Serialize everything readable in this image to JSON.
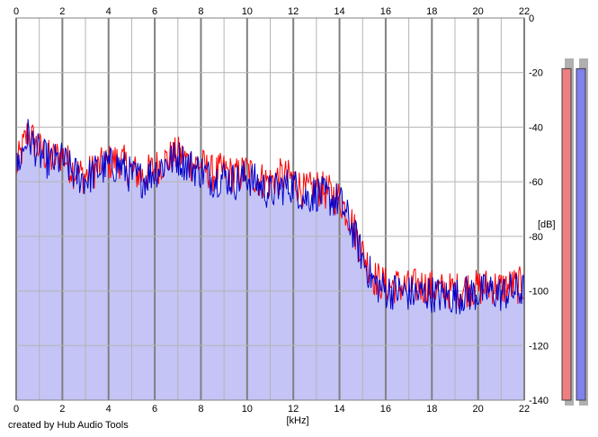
{
  "credit": "created by Hub Audio Tools",
  "chart_data": {
    "type": "area",
    "xlabel": "[kHz]",
    "ylabel": "[dB]",
    "xlim": [
      0,
      22
    ],
    "ylim": [
      -140,
      0
    ],
    "x_ticks": [
      "0",
      "2",
      "4",
      "6",
      "8",
      "10",
      "12",
      "14",
      "16",
      "18",
      "20",
      "22"
    ],
    "y_ticks": [
      "0",
      "-20",
      "-40",
      "-60",
      "-80",
      "-100",
      "-120",
      "-140"
    ],
    "grid": true,
    "colors": {
      "fill": "#c4c4f6",
      "grid": "#b4b4b4",
      "major_grid": "#808080",
      "red_series": "#ff0000",
      "blue_series": "#0000cc",
      "left_meter": "#ee7f80",
      "right_meter": "#8080ee"
    },
    "x": [
      0,
      0.5,
      1,
      1.5,
      2,
      2.5,
      3,
      3.5,
      4,
      4.5,
      5,
      5.5,
      6,
      6.5,
      7,
      7.5,
      8,
      8.5,
      9,
      9.5,
      10,
      10.5,
      11,
      11.5,
      12,
      12.5,
      13,
      13.5,
      14,
      14.5,
      15,
      15.5,
      16,
      16.5,
      17,
      17.5,
      18,
      18.5,
      19,
      19.5,
      20,
      20.5,
      21,
      21.5,
      22
    ],
    "series": [
      {
        "values": [
          -55,
          -42,
          -48,
          -52,
          -50,
          -56,
          -58,
          -55,
          -53,
          -52,
          -56,
          -58,
          -55,
          -52,
          -50,
          -53,
          -54,
          -57,
          -56,
          -58,
          -56,
          -59,
          -60,
          -58,
          -59,
          -64,
          -62,
          -64,
          -66,
          -74,
          -86,
          -95,
          -98,
          -98,
          -99,
          -98,
          -99,
          -100,
          -100,
          -99,
          -99,
          -98,
          -99,
          -98,
          -98
        ]
      },
      {
        "values": [
          -56,
          -43,
          -50,
          -53,
          -52,
          -57,
          -59,
          -56,
          -54,
          -54,
          -58,
          -59,
          -56,
          -53,
          -51,
          -54,
          -56,
          -59,
          -58,
          -60,
          -58,
          -61,
          -64,
          -62,
          -61,
          -66,
          -64,
          -66,
          -67,
          -76,
          -88,
          -97,
          -100,
          -100,
          -101,
          -101,
          -101,
          -102,
          -102,
          -101,
          -101,
          -100,
          -101,
          -100,
          -100
        ]
      }
    ],
    "meters": {
      "left_level": 0.96,
      "right_level": 0.96
    }
  }
}
